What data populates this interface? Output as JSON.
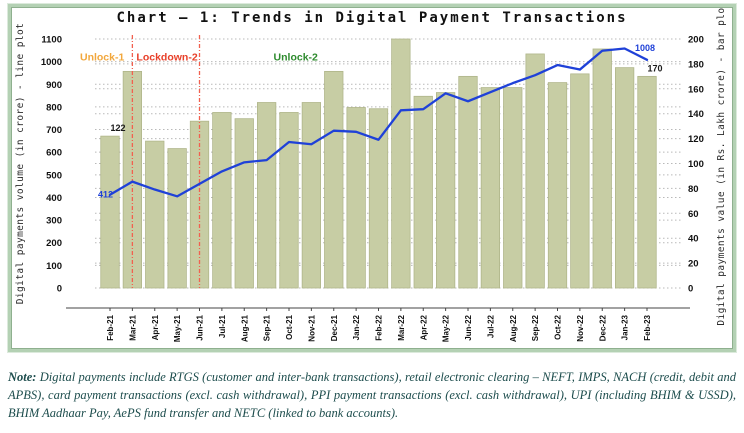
{
  "title": "Chart – 1: Trends in Digital Payment Transactions",
  "note": {
    "label": "Note:",
    "text": " Digital payments include RTGS (customer and inter-bank transactions), retail electronic clearing – NEFT, IMPS, NACH (credit, debit and APBS), card payment transactions (excl. cash withdrawal), PPI payment transactions (excl. cash withdrawal), UPI (including BHIM & USSD), BHIM Aadhaar Pay, AePS fund transfer and NETC (linked to bank accounts)."
  },
  "chart_data": {
    "type": "bar+line",
    "title": "Chart – 1: Trends in Digital Payment Transactions",
    "categories": [
      "Feb-21",
      "Mar-21",
      "Apr-21",
      "May-21",
      "Jun-21",
      "Jul-21",
      "Aug-21",
      "Sep-21",
      "Oct-21",
      "Nov-21",
      "Dec-21",
      "Jan-22",
      "Feb-22",
      "Mar-22",
      "Apr-22",
      "May-22",
      "Jun-22",
      "Jul-22",
      "Aug-22",
      "Sep-22",
      "Oct-22",
      "Nov-22",
      "Dec-22",
      "Jan-23",
      "Feb-23"
    ],
    "series": [
      {
        "name": "Digital payments value",
        "type": "bar",
        "axis": "right",
        "unit": "Rs. Lakh crore",
        "color": "#c7cda4",
        "stroke": "#aeb488",
        "values": [
          122,
          174,
          118,
          112,
          134,
          141,
          136,
          149,
          141,
          149,
          174,
          145,
          144,
          200,
          154,
          157,
          170,
          161,
          161,
          188,
          165,
          172,
          192,
          177,
          170
        ]
      },
      {
        "name": "Digital payments volume",
        "type": "line",
        "axis": "left",
        "unit": "crore",
        "color": "#1f41d8",
        "values": [
          412,
          470,
          435,
          405,
          460,
          515,
          555,
          565,
          645,
          635,
          695,
          690,
          655,
          785,
          790,
          860,
          825,
          865,
          905,
          940,
          985,
          965,
          1048,
          1058,
          1008
        ]
      }
    ],
    "left_axis": {
      "label": "Digital payments volume (in crore) - line plot",
      "min": 0,
      "max": 1100,
      "step": 100
    },
    "right_axis": {
      "label": "Digital payments value (in Rs. Lakh crore) - bar plot",
      "min": 0,
      "max": 200,
      "step": 20
    },
    "grid": {
      "show": true,
      "style": "dotted",
      "color": "#b9b9b9"
    },
    "legend": "none",
    "reference_lines": [
      {
        "month": "Mar-21",
        "color": "#f2604f"
      },
      {
        "month": "Jun-21",
        "color": "#f2604f"
      }
    ],
    "annotations": [
      {
        "text": "Unlock-1",
        "color": "#f2a73c",
        "anchor_index": -0.35,
        "y_value": 1005
      },
      {
        "text": "Lockdown-2",
        "color": "#e8402a",
        "anchor_index": 2.55,
        "y_value": 1005
      },
      {
        "text": "Unlock-2",
        "color": "#2e8b2e",
        "anchor_index": 8.3,
        "y_value": 1005
      }
    ],
    "point_labels": [
      {
        "text": "122",
        "series": 0,
        "month": "Feb-21",
        "placement": "above",
        "color": "#1a1a1a"
      },
      {
        "text": "412",
        "series": 1,
        "month": "Feb-21",
        "placement": "left",
        "color": "#1f41d8"
      },
      {
        "text": "1008",
        "series": 1,
        "month": "Feb-23",
        "placement": "above",
        "color": "#1f41d8"
      },
      {
        "text": "170",
        "series": 0,
        "month": "Feb-23",
        "placement": "above",
        "color": "#1a1a1a"
      }
    ]
  },
  "colors": {
    "frame": "#b4d1b4",
    "bar_fill": "#c7cda4",
    "line": "#1f41d8",
    "note_text": "#1d4d4d",
    "axis_line": "#444444"
  }
}
